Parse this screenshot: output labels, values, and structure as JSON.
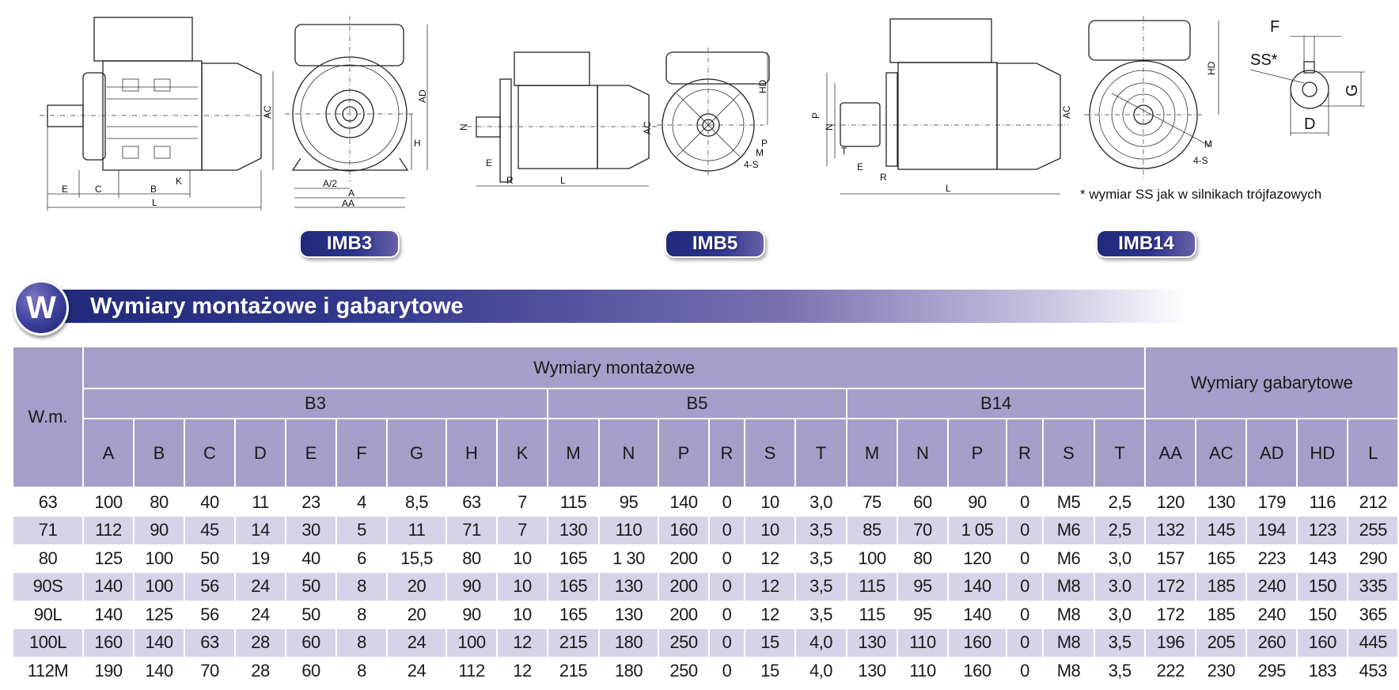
{
  "diagrams": {
    "imb3_side_labels": [
      "E",
      "C",
      "B",
      "L",
      "K",
      "H"
    ],
    "imb3_front_labels": [
      "AC",
      "AD",
      "H",
      "A/2",
      "A",
      "AA"
    ],
    "imb5_side_labels": [
      "N",
      "E",
      "R",
      "L",
      "AC"
    ],
    "imb5_front_labels": [
      "HD",
      "P",
      "M",
      "4-S"
    ],
    "imb14_side_labels": [
      "P",
      "N",
      "T",
      "E",
      "R",
      "L",
      "AC"
    ],
    "imb14_front_labels": [
      "HD",
      "M",
      "4-S"
    ],
    "shaft_labels": [
      "F",
      "SS*",
      "G",
      "D"
    ]
  },
  "badges": {
    "imb3": "IMB3",
    "imb5": "IMB5",
    "imb14": "IMB14"
  },
  "note": "* wymiar SS jak w silnikach trójfazowych",
  "banner": {
    "icon_letter": "W",
    "title": "Wymiary montażowe i gabarytowe"
  },
  "colors": {
    "header": "#a59ec8",
    "stripe": "#d6d2e8",
    "banner": "#1f2878"
  },
  "table": {
    "wm_header": "W.m.",
    "group_mounting": "Wymiary montażowe",
    "group_overall": "Wymiary gabarytowe",
    "subgroups": [
      "B3",
      "B5",
      "B14"
    ],
    "columns_b3": [
      "A",
      "B",
      "C",
      "D",
      "E",
      "F",
      "G",
      "H",
      "K"
    ],
    "columns_b5": [
      "M",
      "N",
      "P",
      "R",
      "S",
      "T"
    ],
    "columns_b14": [
      "M",
      "N",
      "P",
      "R",
      "S",
      "T"
    ],
    "columns_overall": [
      "AA",
      "AC",
      "AD",
      "HD",
      "L"
    ],
    "rows": [
      [
        "63",
        "100",
        "80",
        "40",
        "11",
        "23",
        "4",
        "8,5",
        "63",
        "7",
        "115",
        "95",
        "140",
        "0",
        "10",
        "3,0",
        "75",
        "60",
        "90",
        "0",
        "M5",
        "2,5",
        "120",
        "130",
        "179",
        "116",
        "212"
      ],
      [
        "71",
        "112",
        "90",
        "45",
        "14",
        "30",
        "5",
        "11",
        "71",
        "7",
        "130",
        "110",
        "160",
        "0",
        "10",
        "3,5",
        "85",
        "70",
        "1 05",
        "0",
        "M6",
        "2,5",
        "132",
        "145",
        "194",
        "123",
        "255"
      ],
      [
        "80",
        "125",
        "100",
        "50",
        "19",
        "40",
        "6",
        "15,5",
        "80",
        "10",
        "165",
        "1 30",
        "200",
        "0",
        "12",
        "3,5",
        "100",
        "80",
        "120",
        "0",
        "M6",
        "3,0",
        "157",
        "165",
        "223",
        "143",
        "290"
      ],
      [
        "90S",
        "140",
        "100",
        "56",
        "24",
        "50",
        "8",
        "20",
        "90",
        "10",
        "165",
        "130",
        "200",
        "0",
        "12",
        "3,5",
        "115",
        "95",
        "140",
        "0",
        "M8",
        "3.0",
        "172",
        "185",
        "240",
        "150",
        "335"
      ],
      [
        "90L",
        "140",
        "125",
        "56",
        "24",
        "50",
        "8",
        "20",
        "90",
        "10",
        "165",
        "130",
        "200",
        "0",
        "12",
        "3,5",
        "115",
        "95",
        "140",
        "0",
        "M8",
        "3,0",
        "172",
        "185",
        "240",
        "150",
        "365"
      ],
      [
        "100L",
        "160",
        "140",
        "63",
        "28",
        "60",
        "8",
        "24",
        "100",
        "12",
        "215",
        "180",
        "250",
        "0",
        "15",
        "4,0",
        "130",
        "110",
        "160",
        "0",
        "M8",
        "3,5",
        "196",
        "205",
        "260",
        "160",
        "445"
      ],
      [
        "112M",
        "190",
        "140",
        "70",
        "28",
        "60",
        "8",
        "24",
        "112",
        "12",
        "215",
        "180",
        "250",
        "0",
        "15",
        "4,0",
        "130",
        "110",
        "160",
        "0",
        "M8",
        "3,5",
        "222",
        "230",
        "295",
        "183",
        "453"
      ]
    ]
  }
}
